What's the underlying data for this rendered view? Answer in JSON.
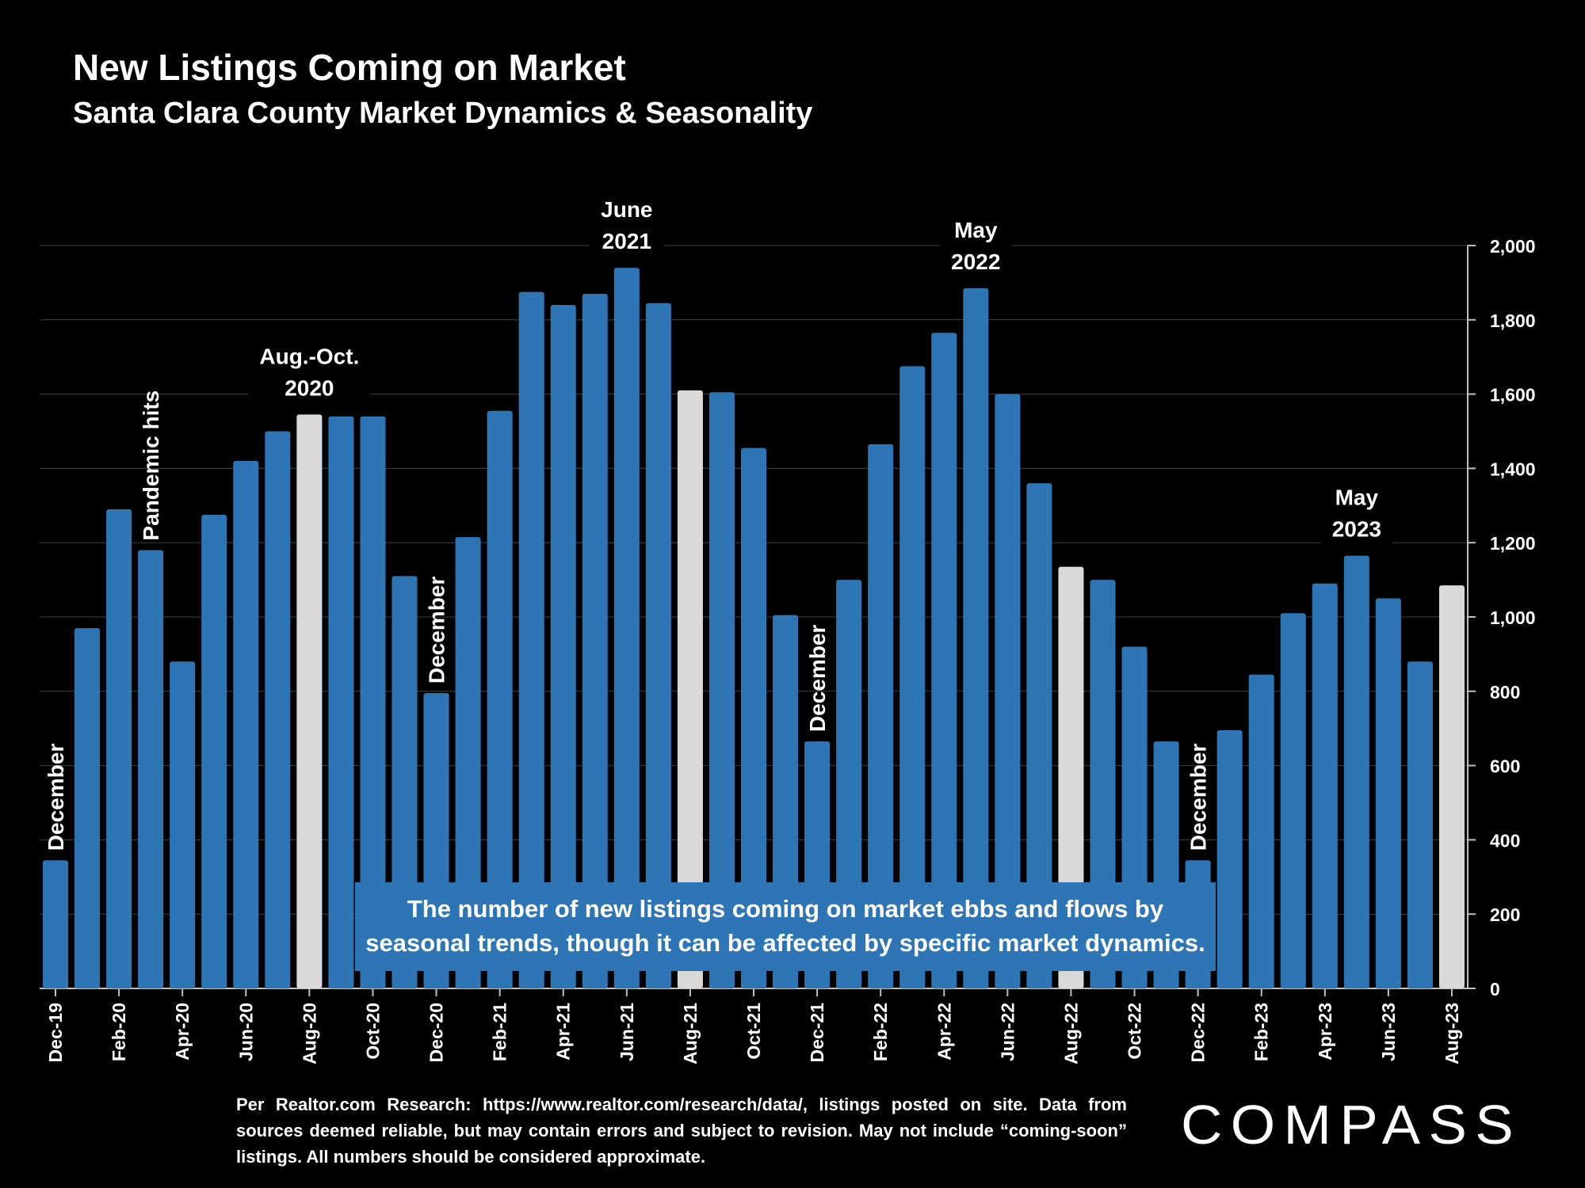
{
  "header": {
    "title": "New Listings Coming on Market",
    "subtitle": "Santa Clara County Market Dynamics & Seasonality"
  },
  "note": "The number of new listings coming on market ebbs and flows by seasonal trends, though it can be affected by specific market dynamics.",
  "source": "Per Realtor.com Research: https://www.realtor.com/research/data/, listings posted on site. Data from sources deemed reliable, but may contain errors and subject to revision. May not include “coming-soon” listings. All numbers should be considered approximate.",
  "logo_text": "COMPASS",
  "colors": {
    "bar": "#2e75b6",
    "highlight": "#d9d9d9",
    "background": "#000000",
    "grid": "#404040"
  },
  "chart_data": {
    "type": "bar",
    "categories": [
      "Dec-19",
      "Jan-20",
      "Feb-20",
      "Mar-20",
      "Apr-20",
      "May-20",
      "Jun-20",
      "Jul-20",
      "Aug-20",
      "Sep-20",
      "Oct-20",
      "Nov-20",
      "Dec-20",
      "Jan-21",
      "Feb-21",
      "Mar-21",
      "Apr-21",
      "May-21",
      "Jun-21",
      "Jul-21",
      "Aug-21",
      "Sep-21",
      "Oct-21",
      "Nov-21",
      "Dec-21",
      "Jan-22",
      "Feb-22",
      "Mar-22",
      "Apr-22",
      "May-22",
      "Jun-22",
      "Jul-22",
      "Aug-22",
      "Sep-22",
      "Oct-22",
      "Nov-22",
      "Dec-22",
      "Jan-23",
      "Feb-23",
      "Mar-23",
      "Apr-23",
      "May-23",
      "Jun-23",
      "Jul-23",
      "Aug-23"
    ],
    "tick_labels": [
      "Dec-19",
      "",
      "Feb-20",
      "",
      "Apr-20",
      "",
      "Jun-20",
      "",
      "Aug-20",
      "",
      "Oct-20",
      "",
      "Dec-20",
      "",
      "Feb-21",
      "",
      "Apr-21",
      "",
      "Jun-21",
      "",
      "Aug-21",
      "",
      "Oct-21",
      "",
      "Dec-21",
      "",
      "Feb-22",
      "",
      "Apr-22",
      "",
      "Jun-22",
      "",
      "Aug-22",
      "",
      "Oct-22",
      "",
      "Dec-22",
      "",
      "Feb-23",
      "",
      "Apr-23",
      "",
      "Jun-23",
      "",
      "Aug-23"
    ],
    "values": [
      345,
      970,
      1290,
      1180,
      880,
      1275,
      1420,
      1500,
      1545,
      1540,
      1540,
      1110,
      795,
      1215,
      1555,
      1875,
      1840,
      1870,
      1940,
      1845,
      1610,
      1605,
      1455,
      1005,
      665,
      1100,
      1465,
      1675,
      1765,
      1885,
      1600,
      1360,
      1135,
      1100,
      920,
      665,
      345,
      695,
      845,
      1010,
      1090,
      1165,
      1050,
      880,
      1085
    ],
    "highlighted": [
      8,
      20,
      32,
      44
    ],
    "ylim": [
      0,
      2000
    ],
    "yticks": [
      0,
      200,
      400,
      600,
      800,
      1000,
      1200,
      1400,
      1600,
      1800,
      2000
    ],
    "ytick_labels": [
      "0",
      "200",
      "400",
      "600",
      "800",
      "1,000",
      "1,200",
      "1,400",
      "1,600",
      "1,800",
      "2,000"
    ],
    "grid": true,
    "y_axis_side": "right",
    "annotations": [
      {
        "index": 0,
        "text": "December",
        "rotate": true
      },
      {
        "index": 3,
        "text": "Pandemic hits",
        "rotate": true
      },
      {
        "index": 8,
        "text": "Aug.-Oct. 2020",
        "lines": [
          "Aug.-Oct.",
          "2020"
        ]
      },
      {
        "index": 12,
        "text": "December",
        "rotate": true
      },
      {
        "index": 18,
        "text": "June 2021",
        "lines": [
          "June",
          "2021"
        ]
      },
      {
        "index": 24,
        "text": "December",
        "rotate": true
      },
      {
        "index": 29,
        "text": "May 2022",
        "lines": [
          "May",
          "2022"
        ]
      },
      {
        "index": 36,
        "text": "December",
        "rotate": true
      },
      {
        "index": 41,
        "text": "May 2023",
        "lines": [
          "May",
          "2023"
        ]
      }
    ]
  }
}
